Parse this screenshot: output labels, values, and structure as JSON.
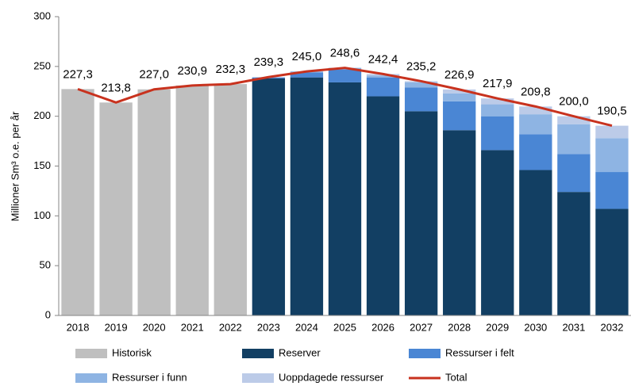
{
  "chart_data": {
    "type": "bar",
    "stacked": true,
    "y_label": "Millioner Sm³ o.e. per år",
    "categories": [
      "2018",
      "2019",
      "2020",
      "2021",
      "2022",
      "2023",
      "2024",
      "2025",
      "2026",
      "2027",
      "2028",
      "2029",
      "2030",
      "2031",
      "2032"
    ],
    "series": [
      {
        "name": "Historisk",
        "color": "#bfbfbf",
        "values": [
          227.3,
          213.8,
          227.0,
          230.9,
          232.3,
          null,
          null,
          null,
          null,
          null,
          null,
          null,
          null,
          null,
          null
        ]
      },
      {
        "name": "Reserver",
        "color": "#123f63",
        "values": [
          null,
          null,
          null,
          null,
          null,
          238,
          239,
          234,
          220,
          205,
          186,
          166,
          146,
          124,
          107
        ]
      },
      {
        "name": "Ressurser i felt",
        "color": "#4a86d4",
        "values": [
          null,
          null,
          null,
          null,
          null,
          1,
          5,
          13,
          19,
          24,
          29,
          34,
          36,
          38,
          37
        ]
      },
      {
        "name": "Ressurser i funn",
        "color": "#8eb4e3",
        "values": [
          null,
          null,
          null,
          null,
          null,
          0,
          1,
          1.6,
          2,
          5,
          8,
          12,
          20,
          30,
          34
        ]
      },
      {
        "name": "Uoppdagede ressurser",
        "color": "#bccbe8",
        "values": [
          null,
          null,
          null,
          null,
          null,
          0.3,
          0,
          0,
          1.4,
          1.2,
          3.9,
          5.9,
          7.8,
          8,
          12.5
        ]
      },
      {
        "name": "Total",
        "type": "line",
        "color": "#c8321e",
        "values": [
          227.3,
          213.8,
          227.0,
          230.9,
          232.3,
          239.3,
          245.0,
          248.6,
          242.4,
          235.2,
          226.9,
          217.9,
          209.8,
          200.0,
          190.5
        ],
        "value_labels": [
          "227,3",
          "213,8",
          "227,0",
          "230,9",
          "232,3",
          "239,3",
          "245,0",
          "248,6",
          "242,4",
          "235,2",
          "226,9",
          "217,9",
          "209,8",
          "200,0",
          "190,5"
        ]
      }
    ],
    "ylim": [
      0,
      300
    ],
    "yticks": [
      0,
      50,
      100,
      150,
      200,
      250,
      300
    ],
    "grid": false
  }
}
